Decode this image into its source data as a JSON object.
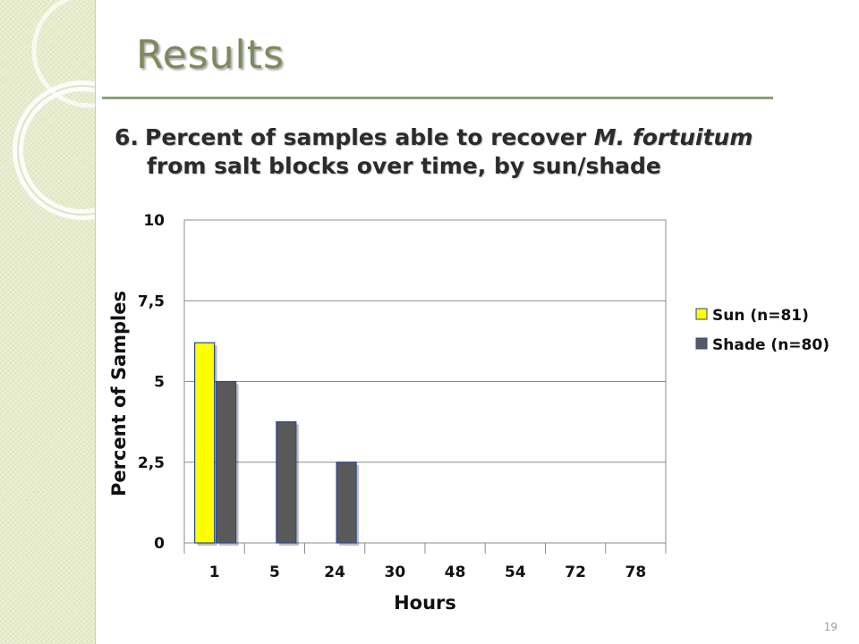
{
  "slide": {
    "title": "Results",
    "subtitle_number": "6.",
    "subtitle_line1_pre": "Percent of samples able to recover ",
    "subtitle_line1_italic": "M. fortuitum",
    "subtitle_line2": "from salt blocks over time, by sun/shade",
    "page_number": "19"
  },
  "chart_data": {
    "type": "bar",
    "xlabel": "Hours",
    "ylabel": "Percent of Samples",
    "categories": [
      "1",
      "5",
      "24",
      "30",
      "48",
      "54",
      "72",
      "78"
    ],
    "y_tick_labels": [
      "0",
      "2,5",
      "5",
      "7,5",
      "10"
    ],
    "y_ticks": [
      0,
      2.5,
      5,
      7.5,
      10
    ],
    "ylim": [
      0,
      10
    ],
    "grid": true,
    "legend_position": "right",
    "series": [
      {
        "name": "Sun (n=81)",
        "color": "#ffff00",
        "values": [
          6.2,
          0,
          0,
          0,
          0,
          0,
          0,
          0
        ]
      },
      {
        "name": "Shade (n=80)",
        "color": "#595959",
        "values": [
          5.0,
          3.75,
          2.5,
          0,
          0,
          0,
          0,
          0
        ]
      }
    ]
  }
}
